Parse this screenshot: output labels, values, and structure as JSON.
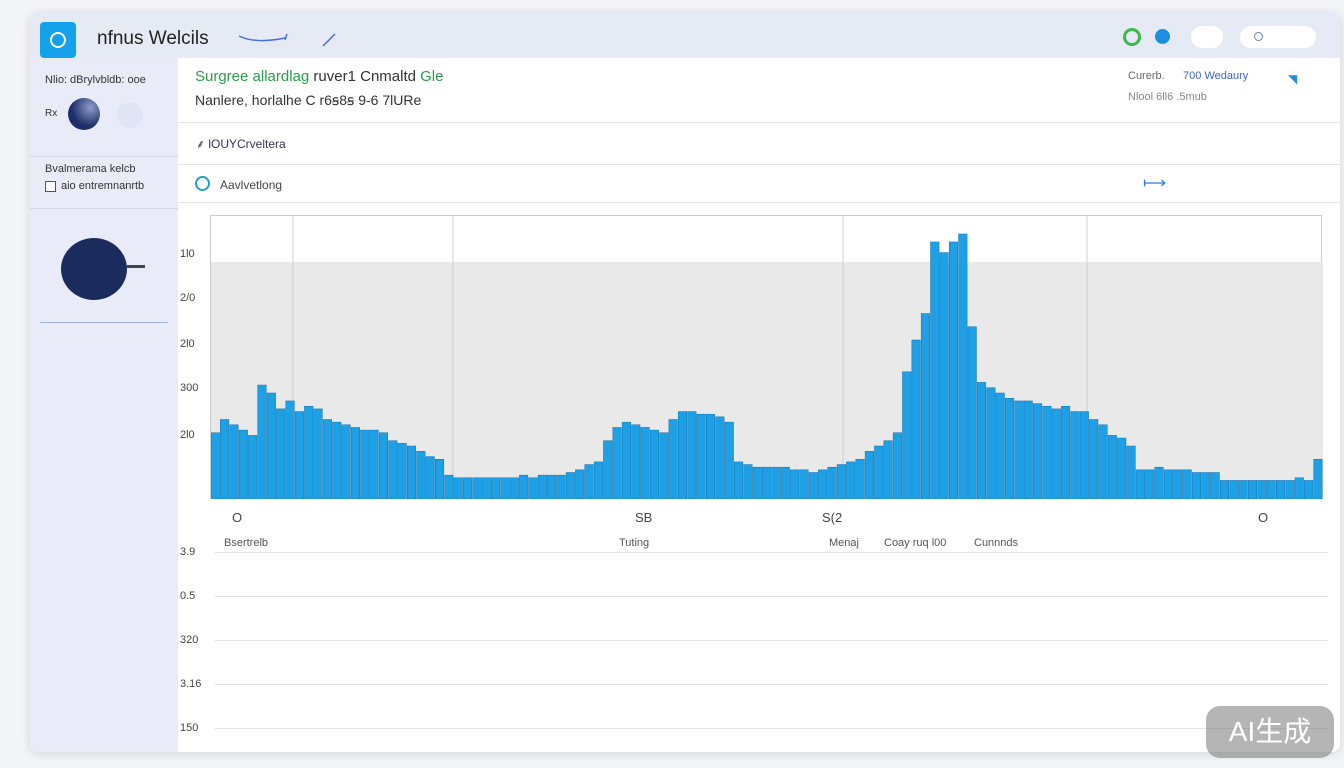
{
  "app": {
    "title": "nfnus Welcils"
  },
  "sidebar": {
    "label1": "Nlio: dBrylvbldb: ooe",
    "label2": "Rx",
    "section": "Bvalmerama kelcb",
    "checkbox": "aio entremnanrtb"
  },
  "header": {
    "line1": "Surgree allardlag",
    "line1b": "ruver1 Cnmaltd",
    "line1c": "Gle",
    "line2": "Nanlere, horlalhe",
    "line2b": "C  r6ꞩ8ꞩ 9-6  7lURe",
    "stat1_label": "Curerb.",
    "stat1_value": "700 Wedaury",
    "stat2": "Nlool 6ll6 .5mub"
  },
  "rows": {
    "row1": "lOUYCrveltera",
    "row2": "Aavlvetlong"
  },
  "chart_data": {
    "type": "bar",
    "title": "",
    "ylabels": [
      "1l0",
      "2/0",
      "2l0",
      "300",
      "2l0"
    ],
    "xlabels": [
      "O",
      "SB",
      "S(2",
      "O"
    ],
    "values": [
      25,
      30,
      28,
      26,
      24,
      43,
      40,
      34,
      37,
      33,
      35,
      34,
      30,
      29,
      28,
      27,
      26,
      26,
      25,
      22,
      21,
      20,
      18,
      16,
      15,
      9,
      8,
      8,
      8,
      8,
      8,
      8,
      8,
      9,
      8,
      9,
      9,
      9,
      10,
      11,
      13,
      14,
      22,
      27,
      29,
      28,
      27,
      26,
      25,
      30,
      33,
      33,
      32,
      32,
      31,
      29,
      14,
      13,
      12,
      12,
      12,
      12,
      11,
      11,
      10,
      11,
      12,
      13,
      14,
      15,
      18,
      20,
      22,
      25,
      48,
      60,
      70,
      97,
      93,
      97,
      100,
      65,
      44,
      42,
      40,
      38,
      37,
      37,
      36,
      35,
      34,
      35,
      33,
      33,
      30,
      28,
      24,
      23,
      20,
      11,
      11,
      12,
      11,
      11,
      11,
      10,
      10,
      10,
      7,
      7,
      7,
      7,
      7,
      7,
      7,
      7,
      8,
      7,
      15
    ],
    "color": "#1ea0e6"
  },
  "legend": [
    "Bsertrelb",
    "Tuting",
    "Menaj",
    "Coay ruq l00",
    "Cunnnds"
  ],
  "lower_ylabels": [
    "3.9",
    "0.5",
    "320",
    "3.16",
    "150"
  ],
  "watermark": "AI生成"
}
